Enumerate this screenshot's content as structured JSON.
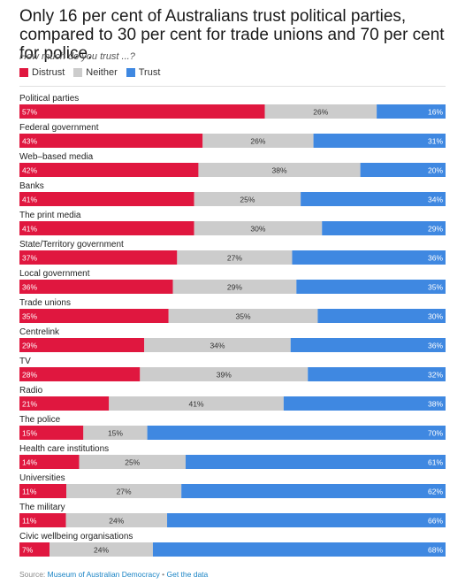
{
  "header": {
    "title": "Only 16 per cent of Australians trust political parties, compared to 30 per cent for trade unions and 70 per cent for police.",
    "subtitle": "How much do you trust ...?"
  },
  "footer": {
    "source_label": "Source:",
    "source_link": "Museum of Australian Democracy",
    "separator": "•",
    "get_data_link": "Get the data"
  },
  "chart_data": {
    "type": "bar",
    "orientation": "horizontal",
    "stacked": true,
    "legend_placement": "top-left",
    "colors": {
      "Distrust": "#e0173f",
      "Neither": "#cccccc",
      "Trust": "#3f88e1"
    },
    "categories": [
      "Political parties",
      "Federal government",
      "Web–based media",
      "Banks",
      "The print media",
      "State/Territory government",
      "Local government",
      "Trade unions",
      "Centrelink",
      "TV",
      "Radio",
      "The police",
      "Health care institutions",
      "Universities",
      "The military",
      "Civic wellbeing organisations"
    ],
    "series": [
      {
        "name": "Distrust",
        "values": [
          57,
          43,
          42,
          41,
          41,
          37,
          36,
          35,
          29,
          28,
          21,
          15,
          14,
          11,
          11,
          7
        ]
      },
      {
        "name": "Neither",
        "values": [
          26,
          26,
          38,
          25,
          30,
          27,
          29,
          35,
          34,
          39,
          41,
          15,
          25,
          27,
          24,
          24
        ]
      },
      {
        "name": "Trust",
        "values": [
          16,
          31,
          20,
          34,
          29,
          36,
          35,
          30,
          36,
          32,
          38,
          70,
          61,
          62,
          66,
          68
        ]
      }
    ]
  }
}
